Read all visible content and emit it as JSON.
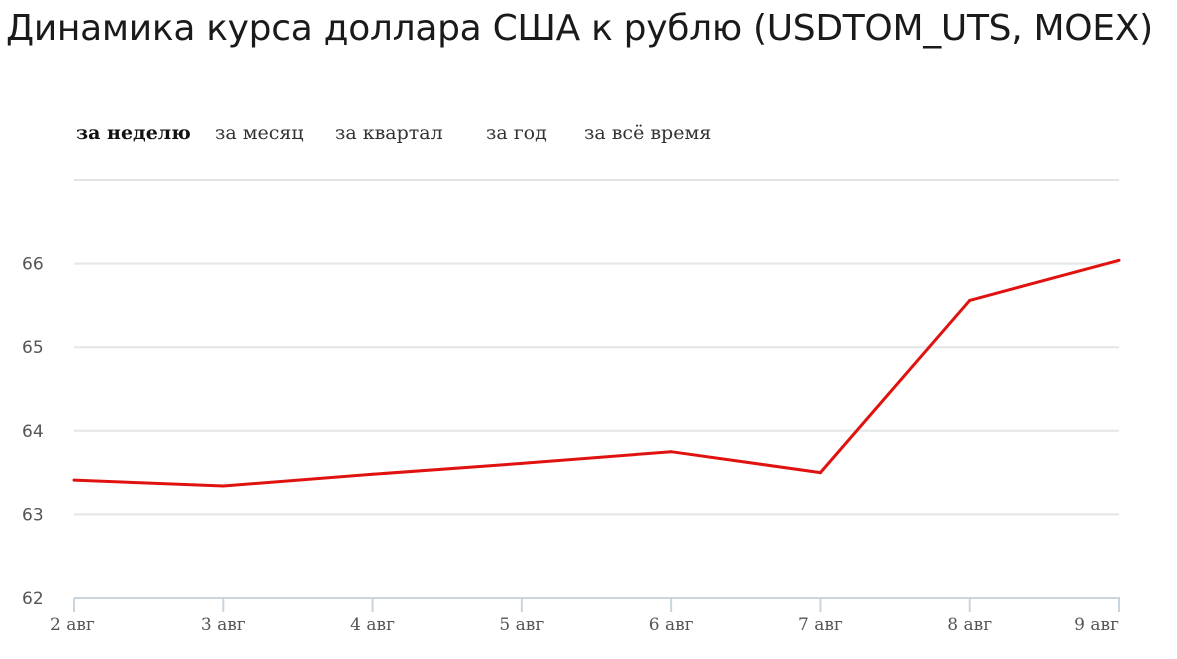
{
  "title": "Динамика курса доллара США к рублю (USDTOM_UTS, MOEX)",
  "tabs": [
    {
      "label": "за неделю",
      "active": true
    },
    {
      "label": "за месяц",
      "active": false
    },
    {
      "label": "за квартал",
      "active": false
    },
    {
      "label": "за год",
      "active": false
    },
    {
      "label": "за всё время",
      "active": false
    }
  ],
  "colors": {
    "line": "#e0120f",
    "grid": "#e3e6e8",
    "axis": "#c9d4dc",
    "tick_text": "#555555"
  },
  "chart_data": {
    "type": "line",
    "title": "",
    "xlabel": "",
    "ylabel": "",
    "categories": [
      "2 авг",
      "3 авг",
      "4 авг",
      "5 авг",
      "6 авг",
      "7 авг",
      "8 авг",
      "9 авг"
    ],
    "yticks": [
      "62",
      "63",
      "64",
      "65",
      "66"
    ],
    "ylim": [
      62,
      67
    ],
    "grid": true,
    "legend": "none",
    "series": [
      {
        "values": [
          63.41,
          63.34,
          63.48,
          63.61,
          63.75,
          63.5,
          65.56,
          66.04
        ]
      }
    ]
  }
}
